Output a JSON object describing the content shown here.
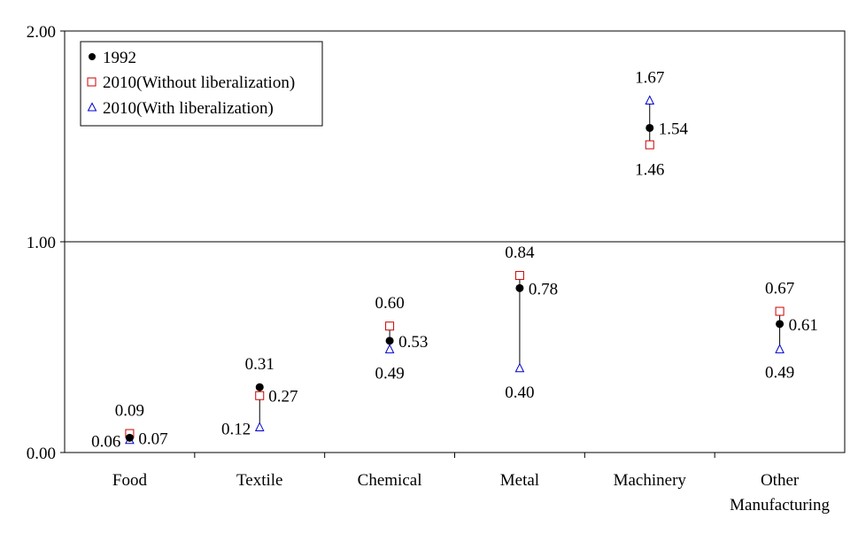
{
  "chart_data": {
    "type": "scatter",
    "title": "",
    "xlabel": "",
    "ylabel": "",
    "ylim": [
      0,
      2
    ],
    "yticks": [
      "0.00",
      "1.00",
      "2.00"
    ],
    "grid": "horizontal line at 1.00 only",
    "legend_position": "top-left",
    "categories": [
      [
        "Food"
      ],
      [
        "Textile"
      ],
      [
        "Chemical"
      ],
      [
        "Metal"
      ],
      [
        "Machinery"
      ],
      [
        "Other",
        "Manufacturing"
      ]
    ],
    "series": [
      {
        "name": "1992",
        "marker": "filled-circle",
        "color": "#000000",
        "values": [
          0.07,
          0.31,
          0.53,
          0.78,
          1.54,
          0.61
        ],
        "labels": [
          "0.07",
          "0.31",
          "0.53",
          "0.78",
          "1.54",
          "0.61"
        ]
      },
      {
        "name": "2010(Without liberalization)",
        "marker": "open-square",
        "color": "#cc0000",
        "values": [
          0.09,
          0.27,
          0.6,
          0.84,
          1.46,
          0.67
        ],
        "labels": [
          "0.09",
          "0.27",
          "0.60",
          "0.84",
          "1.46",
          "0.67"
        ]
      },
      {
        "name": "2010(With liberalization)",
        "marker": "open-triangle",
        "color": "#0000cc",
        "values": [
          0.06,
          0.12,
          0.49,
          0.4,
          1.67,
          0.49
        ],
        "labels": [
          "0.06",
          "0.12",
          "0.49",
          "0.40",
          "1.67",
          "0.49"
        ]
      }
    ]
  }
}
